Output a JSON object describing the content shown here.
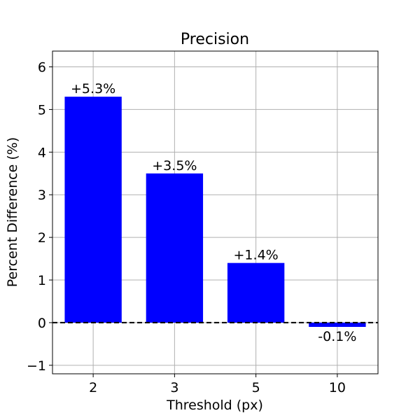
{
  "chart_data": {
    "type": "bar",
    "title": "Precision",
    "xlabel": "Threshold (px)",
    "ylabel": "Percent Difference (%)",
    "categories": [
      "2",
      "3",
      "5",
      "10"
    ],
    "values": [
      5.3,
      3.5,
      1.4,
      -0.1
    ],
    "data_labels": [
      "+5.3%",
      "+3.5%",
      "+1.4%",
      "-0.1%"
    ],
    "ylim": [
      -1.2,
      6.37
    ],
    "yticks": [
      -1,
      0,
      1,
      2,
      3,
      4,
      5,
      6
    ],
    "ytick_labels": [
      "−1",
      "0",
      "1",
      "2",
      "3",
      "4",
      "5",
      "6"
    ],
    "grid": true,
    "reference_line": {
      "y": 0,
      "style": "dashed",
      "color": "#000000"
    },
    "bar_color": "#0000ff"
  }
}
